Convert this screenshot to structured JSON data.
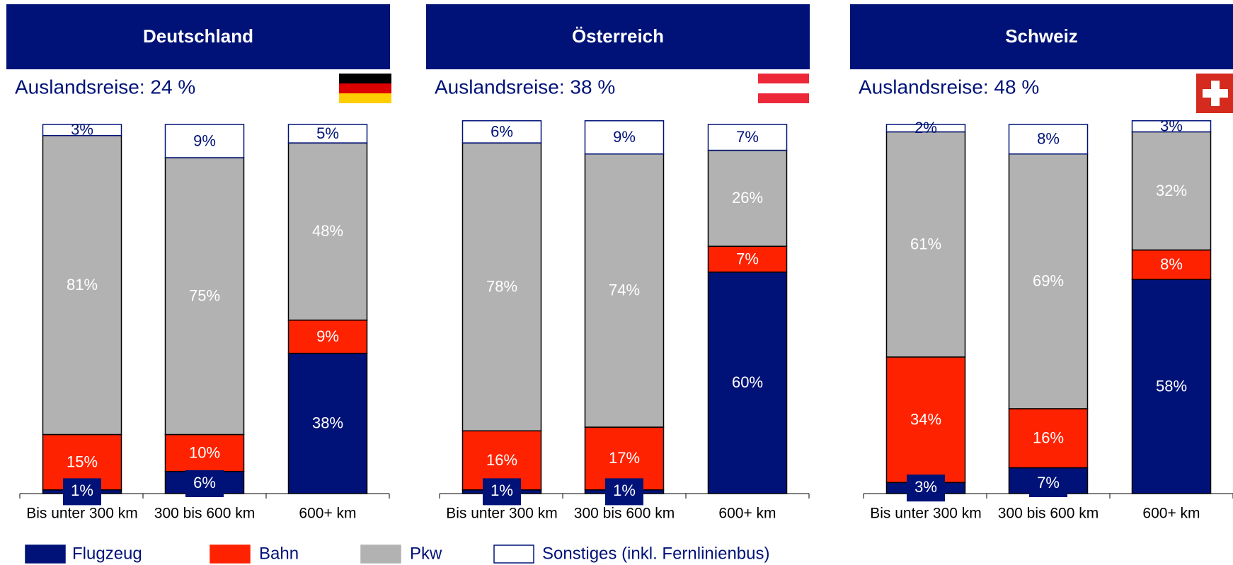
{
  "chart_data": [
    {
      "type": "stacked-bar",
      "title": "Deutschland",
      "subtitle": "Auslandsreise: 24 %",
      "categories": [
        "Bis unter 300 km",
        "300 bis 600 km",
        "600+ km"
      ],
      "ylim": [
        0,
        100
      ],
      "series": [
        {
          "name": "Flugzeug",
          "color": "#001278",
          "values": [
            1,
            6,
            38
          ],
          "value_labels": [
            "1%",
            "6%",
            "38%"
          ]
        },
        {
          "name": "Bahn",
          "color": "#ff2200",
          "values": [
            15,
            10,
            9
          ],
          "value_labels": [
            "15%",
            "10%",
            "9%"
          ]
        },
        {
          "name": "Pkw",
          "color": "#b2b2b2",
          "values": [
            81,
            75,
            48
          ],
          "value_labels": [
            "81%",
            "75%",
            "48%"
          ]
        },
        {
          "name": "Sonstiges (inkl. Fernlinienbus)",
          "color": "#ffffff",
          "values": [
            3,
            9,
            5
          ],
          "value_labels": [
            "3%",
            "9%",
            "5%"
          ]
        }
      ]
    },
    {
      "type": "stacked-bar",
      "title": "Österreich",
      "subtitle": "Auslandsreise: 38 %",
      "categories": [
        "Bis unter 300 km",
        "300 bis 600 km",
        "600+ km"
      ],
      "ylim": [
        0,
        100
      ],
      "series": [
        {
          "name": "Flugzeug",
          "color": "#001278",
          "values": [
            1,
            1,
            60
          ],
          "value_labels": [
            "1%",
            "1%",
            "60%"
          ]
        },
        {
          "name": "Bahn",
          "color": "#ff2200",
          "values": [
            16,
            17,
            7
          ],
          "value_labels": [
            "16%",
            "17%",
            "7%"
          ]
        },
        {
          "name": "Pkw",
          "color": "#b2b2b2",
          "values": [
            78,
            74,
            26
          ],
          "value_labels": [
            "78%",
            "74%",
            "26%"
          ]
        },
        {
          "name": "Sonstiges (inkl. Fernlinienbus)",
          "color": "#ffffff",
          "values": [
            6,
            9,
            7
          ],
          "value_labels": [
            "6%",
            "9%",
            "7%"
          ]
        }
      ]
    },
    {
      "type": "stacked-bar",
      "title": "Schweiz",
      "subtitle": "Auslandsreise: 48 %",
      "categories": [
        "Bis unter 300 km",
        "300 bis 600 km",
        "600+ km"
      ],
      "ylim": [
        0,
        100
      ],
      "series": [
        {
          "name": "Flugzeug",
          "color": "#001278",
          "values": [
            3,
            7,
            58
          ],
          "value_labels": [
            "3%",
            "7%",
            "58%"
          ]
        },
        {
          "name": "Bahn",
          "color": "#ff2200",
          "values": [
            34,
            16,
            8
          ],
          "value_labels": [
            "34%",
            "16%",
            "8%"
          ]
        },
        {
          "name": "Pkw",
          "color": "#b2b2b2",
          "values": [
            61,
            69,
            32
          ],
          "value_labels": [
            "61%",
            "69%",
            "32%"
          ]
        },
        {
          "name": "Sonstiges (inkl. Fernlinienbus)",
          "color": "#ffffff",
          "values": [
            2,
            8,
            3
          ],
          "value_labels": [
            "2%",
            "8%",
            "3%"
          ]
        }
      ]
    }
  ]
}
